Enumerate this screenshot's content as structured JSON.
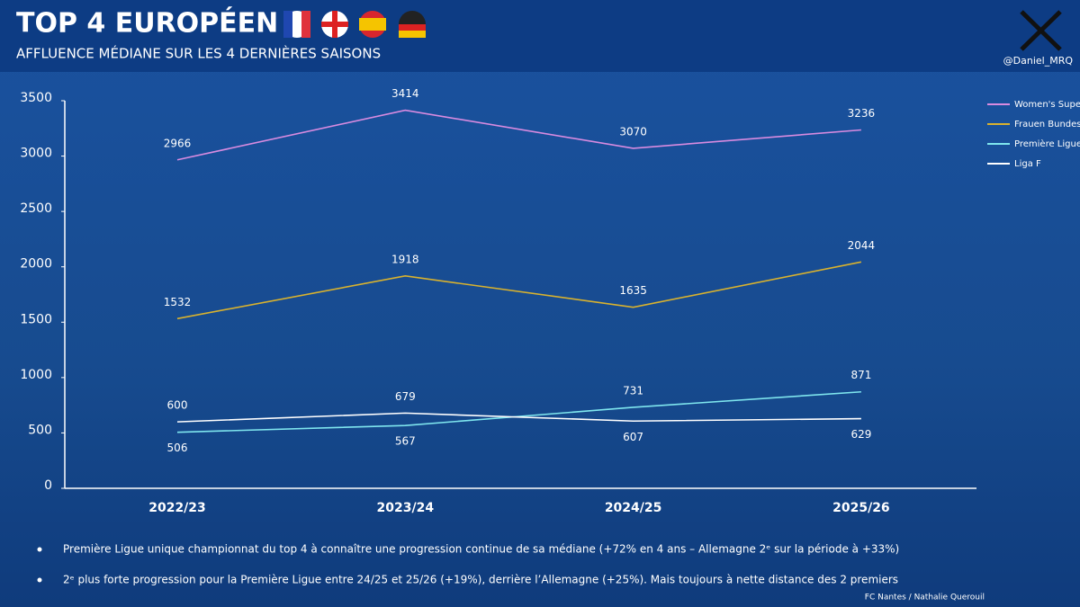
{
  "header": {
    "title": "TOP 4 EUROPÉEN",
    "subtitle": "AFFLUENCE MÉDIANE SUR LES 4 DERNIÈRES SAISONS",
    "handle": "@Daniel_MRQ"
  },
  "chart_data": {
    "type": "line",
    "categories": [
      "2022/23",
      "2023/24",
      "2024/25",
      "2025/26"
    ],
    "series": [
      {
        "name": "Women's Super League",
        "color": "#d98be0",
        "values": [
          2966,
          3414,
          3070,
          3236
        ]
      },
      {
        "name": "Frauen Bundesliga",
        "color": "#d9b22e",
        "values": [
          1532,
          1918,
          1635,
          2044
        ]
      },
      {
        "name": "Première Ligue",
        "color": "#7fe6ee",
        "values": [
          506,
          567,
          731,
          871
        ]
      },
      {
        "name": "Liga F",
        "color": "#ffffff",
        "values": [
          600,
          679,
          607,
          629
        ]
      }
    ],
    "ylim": [
      0,
      3500
    ],
    "yticks": [
      0,
      500,
      1000,
      1500,
      2000,
      2500,
      3000,
      3500
    ],
    "grid": false,
    "legend": "upper right"
  },
  "notes": [
    "Première Ligue unique championnat du top 4 à connaître une progression continue de sa médiane (+72% en 4 ans – Allemagne 2ᵉ sur la période à +33%)",
    "2ᵉ plus forte progression pour la Première Ligue entre 24/25 et 25/26 (+19%), derrière l’Allemagne (+25%). Mais toujours à nette distance des 2 premiers"
  ],
  "credit": "FC Nantes / Nathalie Querouil"
}
